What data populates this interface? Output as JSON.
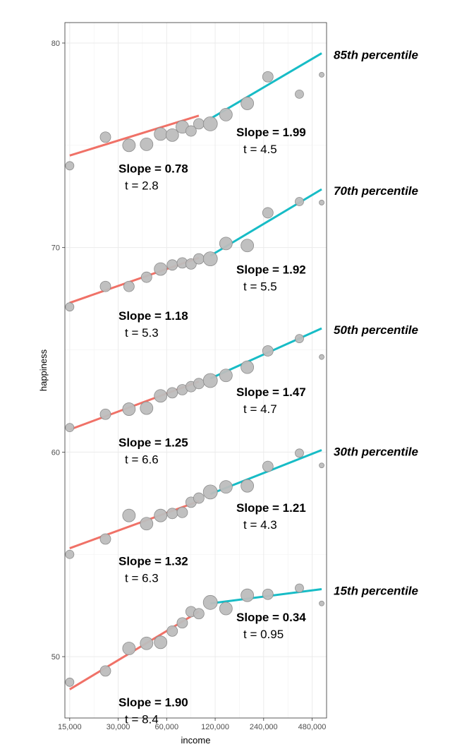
{
  "chart_data": {
    "type": "scatter",
    "xlabel": "income",
    "ylabel": "happiness",
    "x_scale": "log2",
    "xlim": [
      14000,
      590000
    ],
    "ylim": [
      47,
      81
    ],
    "x_ticks": [
      15000,
      30000,
      60000,
      120000,
      240000,
      480000
    ],
    "x_tick_labels": [
      "15,000",
      "30,000",
      "60,000",
      "120,000",
      "240,000",
      "480,000"
    ],
    "y_ticks": [
      50,
      60,
      70,
      80
    ],
    "y_tick_labels": [
      "50",
      "60",
      "70",
      "80"
    ],
    "grid": true,
    "point_color": "#bdbdbd",
    "low_fit_color": "#f07167",
    "high_fit_color": "#17bcc6",
    "groups": [
      {
        "percentile_label": "85th percentile",
        "points": [
          {
            "x": 15000,
            "y": 74.0,
            "size": 2
          },
          {
            "x": 25000,
            "y": 75.4,
            "size": 3
          },
          {
            "x": 35000,
            "y": 75.0,
            "size": 4
          },
          {
            "x": 45000,
            "y": 75.05,
            "size": 4
          },
          {
            "x": 55000,
            "y": 75.55,
            "size": 4
          },
          {
            "x": 65000,
            "y": 75.5,
            "size": 4
          },
          {
            "x": 75000,
            "y": 75.9,
            "size": 4
          },
          {
            "x": 85000,
            "y": 75.7,
            "size": 3
          },
          {
            "x": 95000,
            "y": 76.05,
            "size": 3
          },
          {
            "x": 112000,
            "y": 76.05,
            "size": 5
          },
          {
            "x": 140000,
            "y": 76.5,
            "size": 4
          },
          {
            "x": 190000,
            "y": 77.05,
            "size": 4
          },
          {
            "x": 255000,
            "y": 78.35,
            "size": 3
          },
          {
            "x": 400000,
            "y": 77.5,
            "size": 2
          },
          {
            "x": 550000,
            "y": 78.45,
            "size": 1
          }
        ],
        "low_fit": {
          "x": [
            15000,
            95000
          ],
          "y": [
            74.5,
            76.45
          ]
        },
        "high_fit": {
          "x": [
            112000,
            550000
          ],
          "y": [
            76.3,
            79.5
          ]
        },
        "low_slope": "Slope = 0.78",
        "low_t": "t = 2.8",
        "high_slope": "Slope = 1.99",
        "high_t": "t = 4.5"
      },
      {
        "percentile_label": "70th percentile",
        "points": [
          {
            "x": 15000,
            "y": 67.1,
            "size": 2
          },
          {
            "x": 25000,
            "y": 68.1,
            "size": 3
          },
          {
            "x": 35000,
            "y": 68.1,
            "size": 3
          },
          {
            "x": 45000,
            "y": 68.55,
            "size": 3
          },
          {
            "x": 55000,
            "y": 68.95,
            "size": 4
          },
          {
            "x": 65000,
            "y": 69.15,
            "size": 3
          },
          {
            "x": 75000,
            "y": 69.25,
            "size": 3
          },
          {
            "x": 85000,
            "y": 69.2,
            "size": 3
          },
          {
            "x": 95000,
            "y": 69.45,
            "size": 3
          },
          {
            "x": 112000,
            "y": 69.45,
            "size": 5
          },
          {
            "x": 140000,
            "y": 70.2,
            "size": 4
          },
          {
            "x": 190000,
            "y": 70.1,
            "size": 4
          },
          {
            "x": 255000,
            "y": 71.7,
            "size": 3
          },
          {
            "x": 400000,
            "y": 72.25,
            "size": 2
          },
          {
            "x": 550000,
            "y": 72.2,
            "size": 1
          }
        ],
        "low_fit": {
          "x": [
            15000,
            95000
          ],
          "y": [
            67.3,
            69.5
          ]
        },
        "high_fit": {
          "x": [
            112000,
            550000
          ],
          "y": [
            69.6,
            72.85
          ]
        },
        "low_slope": "Slope = 1.18",
        "low_t": "t = 5.3",
        "high_slope": "Slope = 1.92",
        "high_t": "t = 5.5"
      },
      {
        "percentile_label": "50th percentile",
        "points": [
          {
            "x": 15000,
            "y": 61.2,
            "size": 2
          },
          {
            "x": 25000,
            "y": 61.85,
            "size": 3
          },
          {
            "x": 35000,
            "y": 62.1,
            "size": 4
          },
          {
            "x": 45000,
            "y": 62.15,
            "size": 4
          },
          {
            "x": 55000,
            "y": 62.75,
            "size": 4
          },
          {
            "x": 65000,
            "y": 62.9,
            "size": 3
          },
          {
            "x": 75000,
            "y": 63.05,
            "size": 3
          },
          {
            "x": 85000,
            "y": 63.2,
            "size": 3
          },
          {
            "x": 95000,
            "y": 63.35,
            "size": 3
          },
          {
            "x": 112000,
            "y": 63.5,
            "size": 5
          },
          {
            "x": 140000,
            "y": 63.75,
            "size": 4
          },
          {
            "x": 190000,
            "y": 64.15,
            "size": 4
          },
          {
            "x": 255000,
            "y": 64.95,
            "size": 3
          },
          {
            "x": 400000,
            "y": 65.55,
            "size": 2
          },
          {
            "x": 550000,
            "y": 64.65,
            "size": 1
          }
        ],
        "low_fit": {
          "x": [
            15000,
            95000
          ],
          "y": [
            61.1,
            63.45
          ]
        },
        "high_fit": {
          "x": [
            112000,
            550000
          ],
          "y": [
            63.6,
            66.05
          ]
        },
        "low_slope": "Slope = 1.25",
        "low_t": "t = 6.6",
        "high_slope": "Slope = 1.47",
        "high_t": "t = 4.7"
      },
      {
        "percentile_label": "30th percentile",
        "points": [
          {
            "x": 15000,
            "y": 55.0,
            "size": 2
          },
          {
            "x": 25000,
            "y": 55.75,
            "size": 3
          },
          {
            "x": 35000,
            "y": 56.9,
            "size": 4
          },
          {
            "x": 45000,
            "y": 56.5,
            "size": 4
          },
          {
            "x": 55000,
            "y": 56.9,
            "size": 4
          },
          {
            "x": 65000,
            "y": 57.0,
            "size": 3
          },
          {
            "x": 75000,
            "y": 57.05,
            "size": 3
          },
          {
            "x": 85000,
            "y": 57.55,
            "size": 3
          },
          {
            "x": 95000,
            "y": 57.75,
            "size": 3
          },
          {
            "x": 112000,
            "y": 58.05,
            "size": 5
          },
          {
            "x": 140000,
            "y": 58.3,
            "size": 4
          },
          {
            "x": 190000,
            "y": 58.35,
            "size": 4
          },
          {
            "x": 255000,
            "y": 59.3,
            "size": 3
          },
          {
            "x": 400000,
            "y": 59.95,
            "size": 2
          },
          {
            "x": 550000,
            "y": 59.35,
            "size": 1
          }
        ],
        "low_fit": {
          "x": [
            15000,
            95000
          ],
          "y": [
            55.3,
            57.6
          ]
        },
        "high_fit": {
          "x": [
            112000,
            550000
          ],
          "y": [
            57.95,
            60.1
          ]
        },
        "low_slope": "Slope = 1.32",
        "low_t": "t = 6.3",
        "high_slope": "Slope = 1.21",
        "high_t": "t = 4.3"
      },
      {
        "percentile_label": "15th percentile",
        "points": [
          {
            "x": 15000,
            "y": 48.75,
            "size": 2
          },
          {
            "x": 25000,
            "y": 49.3,
            "size": 3
          },
          {
            "x": 35000,
            "y": 50.4,
            "size": 4
          },
          {
            "x": 45000,
            "y": 50.65,
            "size": 4
          },
          {
            "x": 55000,
            "y": 50.7,
            "size": 4
          },
          {
            "x": 65000,
            "y": 51.25,
            "size": 3
          },
          {
            "x": 75000,
            "y": 51.65,
            "size": 3
          },
          {
            "x": 85000,
            "y": 52.2,
            "size": 3
          },
          {
            "x": 95000,
            "y": 52.1,
            "size": 3
          },
          {
            "x": 112000,
            "y": 52.65,
            "size": 5
          },
          {
            "x": 140000,
            "y": 52.35,
            "size": 4
          },
          {
            "x": 190000,
            "y": 53.0,
            "size": 4
          },
          {
            "x": 255000,
            "y": 53.05,
            "size": 3
          },
          {
            "x": 400000,
            "y": 53.35,
            "size": 2
          },
          {
            "x": 550000,
            "y": 52.6,
            "size": 1
          }
        ],
        "low_fit": {
          "x": [
            15000,
            95000
          ],
          "y": [
            48.4,
            52.2
          ]
        },
        "high_fit": {
          "x": [
            112000,
            550000
          ],
          "y": [
            52.6,
            53.3
          ]
        },
        "low_slope": "Slope = 1.90",
        "low_t": "t = 8.4",
        "high_slope": "Slope = 0.34",
        "high_t": "t = 0.95"
      }
    ]
  }
}
